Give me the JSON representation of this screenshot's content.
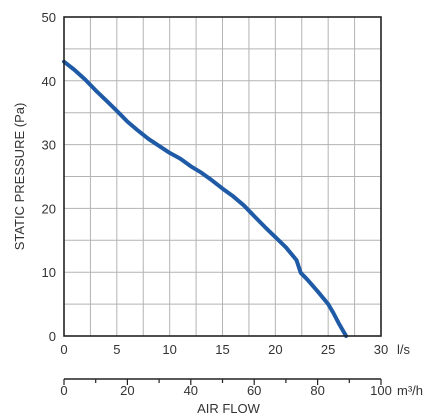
{
  "chart_data": {
    "type": "line",
    "ylabel": "STATIC PRESSURE (Pa)",
    "xlabel": "AIR FLOW",
    "x_unit": "l/s",
    "x2_unit": "m³/h",
    "xlim": [
      0,
      30
    ],
    "ylim": [
      0,
      50
    ],
    "x_ticks": [
      0,
      5,
      10,
      15,
      20,
      25,
      30
    ],
    "y_ticks": [
      0,
      10,
      20,
      30,
      40,
      50
    ],
    "x2_lim": [
      0,
      100
    ],
    "x2_ticks": [
      0,
      20,
      40,
      60,
      80,
      100
    ],
    "x2_minor_ticks": [
      10,
      30,
      50,
      70,
      90
    ],
    "x_grid": [
      2.5,
      5,
      7.5,
      10,
      12.5,
      15,
      17.5,
      20,
      22.5,
      25,
      27.5
    ],
    "y_grid": [
      5,
      10,
      15,
      20,
      25,
      30,
      35,
      40,
      45
    ],
    "grid": true,
    "series": [
      {
        "color": "#1f5aa6",
        "x": [
          0,
          1,
          2,
          3,
          4,
          5,
          6,
          7,
          8,
          9,
          10,
          11,
          12,
          13,
          14,
          15,
          16,
          17,
          18,
          19,
          20,
          21,
          22,
          22.4,
          23,
          24,
          25,
          25.5,
          26,
          26.7
        ],
        "y": [
          43,
          41.7,
          40.2,
          38.5,
          36.9,
          35.3,
          33.6,
          32.2,
          30.9,
          29.8,
          28.7,
          27.8,
          26.6,
          25.6,
          24.4,
          23.1,
          21.9,
          20.5,
          18.8,
          17.1,
          15.5,
          13.9,
          11.9,
          9.9,
          8.9,
          7.0,
          5.0,
          3.6,
          2.0,
          0
        ]
      }
    ]
  }
}
